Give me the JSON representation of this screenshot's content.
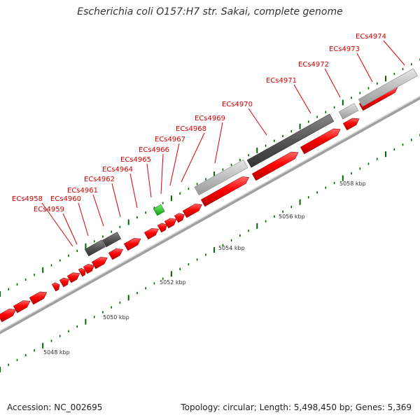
{
  "title": "Escherichia coli O157:H7 str. Sakai, complete genome",
  "footer": {
    "accession": "Accession: NC_002695",
    "summary": "Topology: circular; Length: 5,498,450 bp; Genes: 5,369"
  },
  "scale_labels": [
    "5048 kbp",
    "5050 kbp",
    "5052 kbp",
    "5054 kbp",
    "5056 kbp",
    "5058 kbp"
  ],
  "gene_labels": [
    "ECs4958",
    "ECs4959",
    "ECs4960",
    "ECs4961",
    "ECs4962",
    "ECs4964",
    "ECs4965",
    "ECs4966",
    "ECs4967",
    "ECs4968",
    "ECs4969",
    "ECs4970",
    "ECs4971",
    "ECs4972",
    "ECs4973",
    "ECs4974"
  ],
  "colors": {
    "cds": "#ff0000",
    "rrna_dark": "#555555",
    "rrna_light": "#bbbbbb",
    "trna": "#22cc22",
    "label": "#d40000",
    "backbone": "#999999",
    "tick": "#006600"
  }
}
